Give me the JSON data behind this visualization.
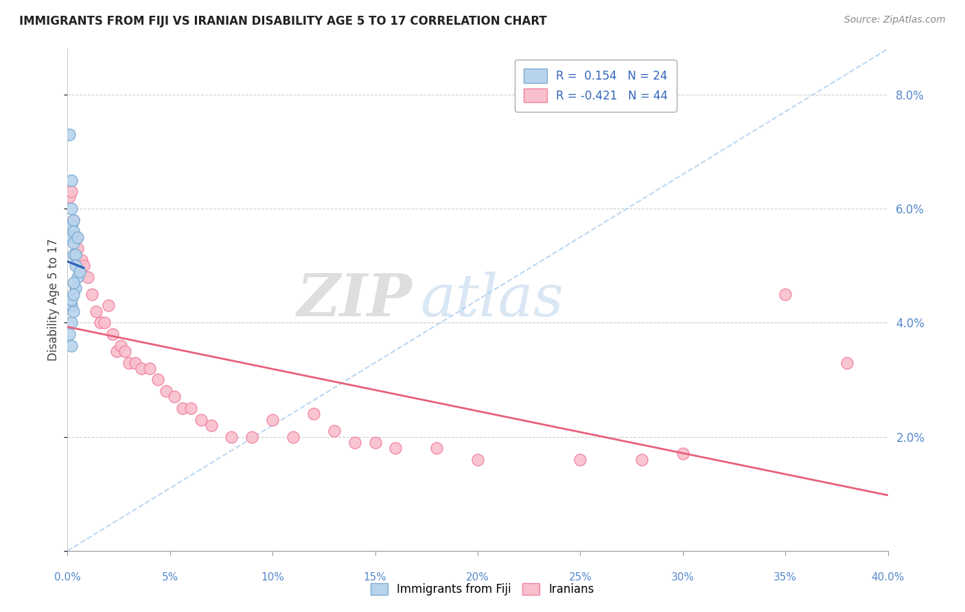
{
  "title": "IMMIGRANTS FROM FIJI VS IRANIAN DISABILITY AGE 5 TO 17 CORRELATION CHART",
  "source": "Source: ZipAtlas.com",
  "ylabel": "Disability Age 5 to 17",
  "xlabel_fiji": "Immigrants from Fiji",
  "xlabel_iranians": "Iranians",
  "xlim": [
    0.0,
    0.4
  ],
  "ylim": [
    0.0,
    0.088
  ],
  "yticks": [
    0.0,
    0.02,
    0.04,
    0.06,
    0.08
  ],
  "xticks": [
    0.0,
    0.05,
    0.1,
    0.15,
    0.2,
    0.25,
    0.3,
    0.35,
    0.4
  ],
  "fiji_color": "#b8d4ed",
  "iran_color": "#f9bfcc",
  "fiji_edge": "#7aaad0",
  "iran_edge": "#f080a0",
  "trend_fiji_color": "#3366bb",
  "trend_iran_color": "#e8607a",
  "trend_diag_color": "#aaccee",
  "r_fiji": 0.154,
  "n_fiji": 24,
  "r_iran": -0.421,
  "n_iran": 44,
  "fiji_x": [
    0.001,
    0.002,
    0.002,
    0.002,
    0.002,
    0.003,
    0.003,
    0.003,
    0.003,
    0.004,
    0.004,
    0.004,
    0.005,
    0.005,
    0.006,
    0.001,
    0.002,
    0.003,
    0.002,
    0.003,
    0.001,
    0.002,
    0.002,
    0.003
  ],
  "fiji_y": [
    0.073,
    0.065,
    0.06,
    0.057,
    0.055,
    0.058,
    0.056,
    0.054,
    0.052,
    0.052,
    0.05,
    0.046,
    0.055,
    0.048,
    0.049,
    0.043,
    0.043,
    0.047,
    0.04,
    0.042,
    0.038,
    0.044,
    0.036,
    0.045
  ],
  "iran_x": [
    0.001,
    0.002,
    0.003,
    0.004,
    0.005,
    0.007,
    0.008,
    0.01,
    0.012,
    0.014,
    0.016,
    0.018,
    0.02,
    0.022,
    0.024,
    0.026,
    0.028,
    0.03,
    0.033,
    0.036,
    0.04,
    0.044,
    0.048,
    0.052,
    0.056,
    0.06,
    0.065,
    0.07,
    0.08,
    0.09,
    0.1,
    0.11,
    0.12,
    0.13,
    0.14,
    0.15,
    0.16,
    0.18,
    0.2,
    0.25,
    0.28,
    0.3,
    0.35,
    0.38
  ],
  "iran_y": [
    0.062,
    0.063,
    0.058,
    0.055,
    0.053,
    0.051,
    0.05,
    0.048,
    0.045,
    0.042,
    0.04,
    0.04,
    0.043,
    0.038,
    0.035,
    0.036,
    0.035,
    0.033,
    0.033,
    0.032,
    0.032,
    0.03,
    0.028,
    0.027,
    0.025,
    0.025,
    0.023,
    0.022,
    0.02,
    0.02,
    0.023,
    0.02,
    0.024,
    0.021,
    0.019,
    0.019,
    0.018,
    0.018,
    0.016,
    0.016,
    0.016,
    0.017,
    0.045,
    0.033
  ],
  "watermark_zip": "ZIP",
  "watermark_atlas": "atlas",
  "background_color": "#ffffff",
  "grid_color": "#cccccc",
  "legend_box_color": "#ddeeff",
  "legend_iran_box": "#f9c0cd"
}
